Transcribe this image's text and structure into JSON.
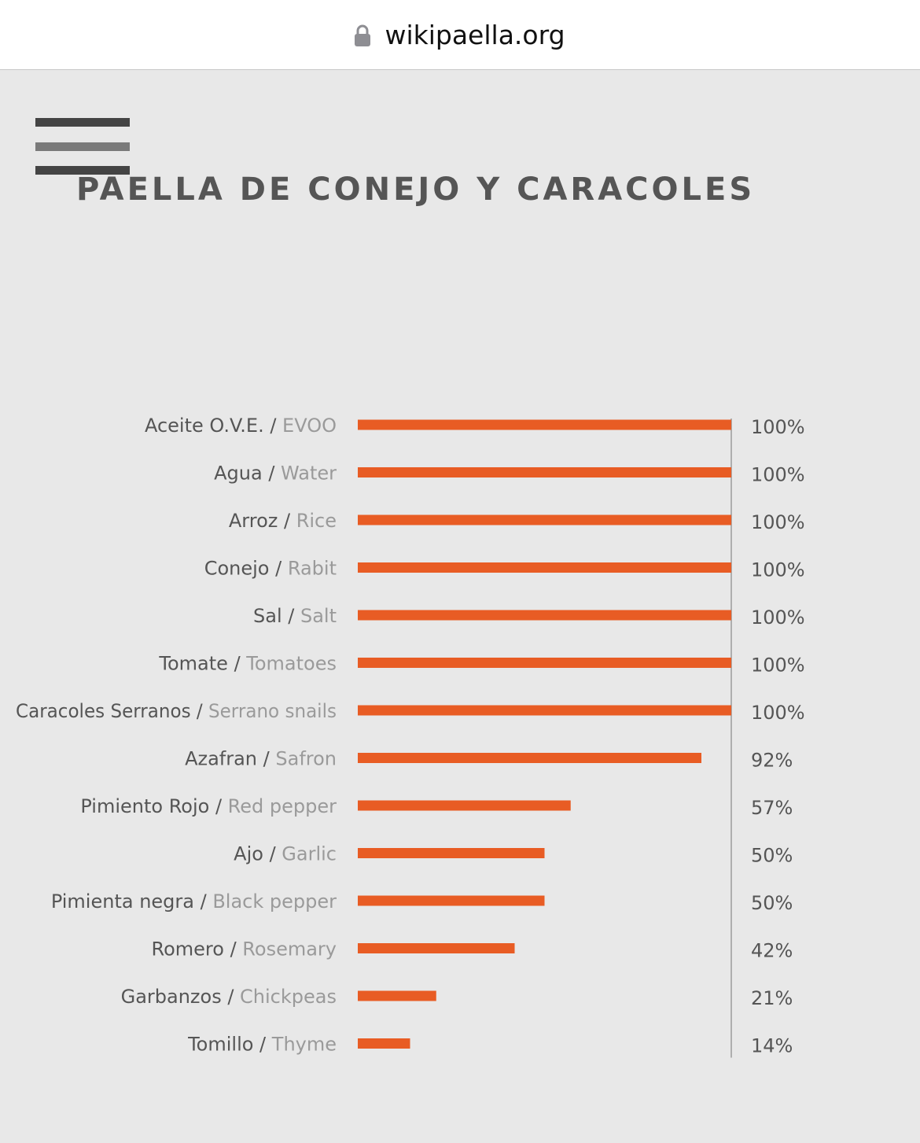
{
  "browser": {
    "domain": "wikipaella.org"
  },
  "page": {
    "title": "PAELLA DE CONEJO Y CARACOLES"
  },
  "colors": {
    "bar": "#e85c24",
    "label_primary": "#555555",
    "label_secondary": "#9a9a9a",
    "axis": "#9a9a9a",
    "background": "#e8e8e8",
    "title": "#555555"
  },
  "chart_data": {
    "type": "bar",
    "orientation": "horizontal",
    "xlim": [
      0,
      100
    ],
    "categories": [
      {
        "es": "Aceite O.V.E.",
        "en": "EVOO",
        "value": 100,
        "label": "100%"
      },
      {
        "es": "Agua",
        "en": "Water",
        "value": 100,
        "label": "100%"
      },
      {
        "es": "Arroz",
        "en": "Rice",
        "value": 100,
        "label": "100%"
      },
      {
        "es": "Conejo",
        "en": "Rabit",
        "value": 100,
        "label": "100%"
      },
      {
        "es": "Sal",
        "en": "Salt",
        "value": 100,
        "label": "100%"
      },
      {
        "es": "Tomate",
        "en": "Tomatoes",
        "value": 100,
        "label": "100%"
      },
      {
        "es": "Caracoles Serranos",
        "en": "Serrano snails",
        "value": 100,
        "label": "100%"
      },
      {
        "es": "Azafran",
        "en": "Safron",
        "value": 92,
        "label": "92%"
      },
      {
        "es": "Pimiento Rojo",
        "en": "Red pepper",
        "value": 57,
        "label": "57%"
      },
      {
        "es": "Ajo",
        "en": "Garlic",
        "value": 50,
        "label": "50%"
      },
      {
        "es": "Pimienta negra",
        "en": "Black pepper",
        "value": 50,
        "label": "50%"
      },
      {
        "es": "Romero",
        "en": "Rosemary",
        "value": 42,
        "label": "42%"
      },
      {
        "es": "Garbanzos",
        "en": "Chickpeas",
        "value": 21,
        "label": "21%"
      },
      {
        "es": "Tomillo",
        "en": "Thyme",
        "value": 14,
        "label": "14%"
      }
    ]
  }
}
